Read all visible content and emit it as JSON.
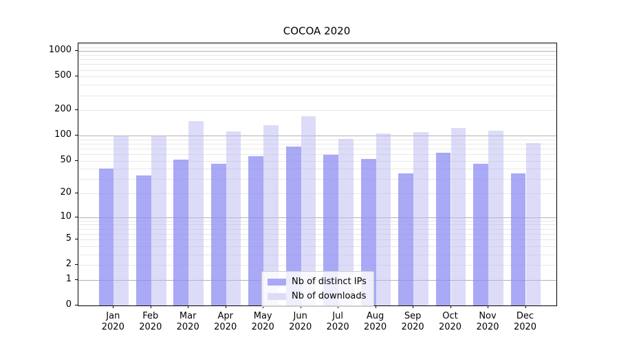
{
  "title": "COCOA 2020",
  "legend": {
    "items": [
      {
        "label": "Nb of distinct IPs",
        "swatch": "#a9a9f4",
        "fill": "rgba(140,140,243,0.75)"
      },
      {
        "label": "Nb of downloads",
        "swatch": "#dcdcf8",
        "fill": "rgba(185,185,241,0.5)"
      }
    ]
  },
  "colors": {
    "major_grid": "#b0b0b0",
    "minor_grid": "#e7e7e7",
    "frame": "#000000",
    "text": "#000000"
  },
  "chart_data": {
    "type": "bar",
    "title": "COCOA 2020",
    "categories": [
      "Jan 2020",
      "Feb 2020",
      "Mar 2020",
      "Apr 2020",
      "May 2020",
      "Jun 2020",
      "Jul 2020",
      "Aug 2020",
      "Sep 2020",
      "Oct 2020",
      "Nov 2020",
      "Dec 2020"
    ],
    "series": [
      {
        "name": "Nb of distinct IPs",
        "values": [
          40,
          33,
          52,
          46,
          57,
          74,
          59,
          53,
          35,
          62,
          46,
          35
        ]
      },
      {
        "name": "Nb of downloads",
        "values": [
          100,
          100,
          148,
          112,
          132,
          169,
          91,
          106,
          110,
          122,
          114,
          82
        ]
      }
    ],
    "xlabel": "",
    "ylabel": "",
    "y_axis": {
      "scale": "log10(1+v)",
      "tick_labels": [
        "0",
        "1",
        "2",
        "5",
        "10",
        "20",
        "50",
        "100",
        "200",
        "500",
        "1000"
      ],
      "tick_values": [
        0,
        1,
        2,
        5,
        10,
        20,
        50,
        100,
        200,
        500,
        1000
      ],
      "ylim": [
        0,
        1230
      ],
      "major_gridline_values": [
        1,
        10,
        100,
        1000
      ],
      "grid": "both"
    },
    "legend_position": "lower center inside plot"
  }
}
